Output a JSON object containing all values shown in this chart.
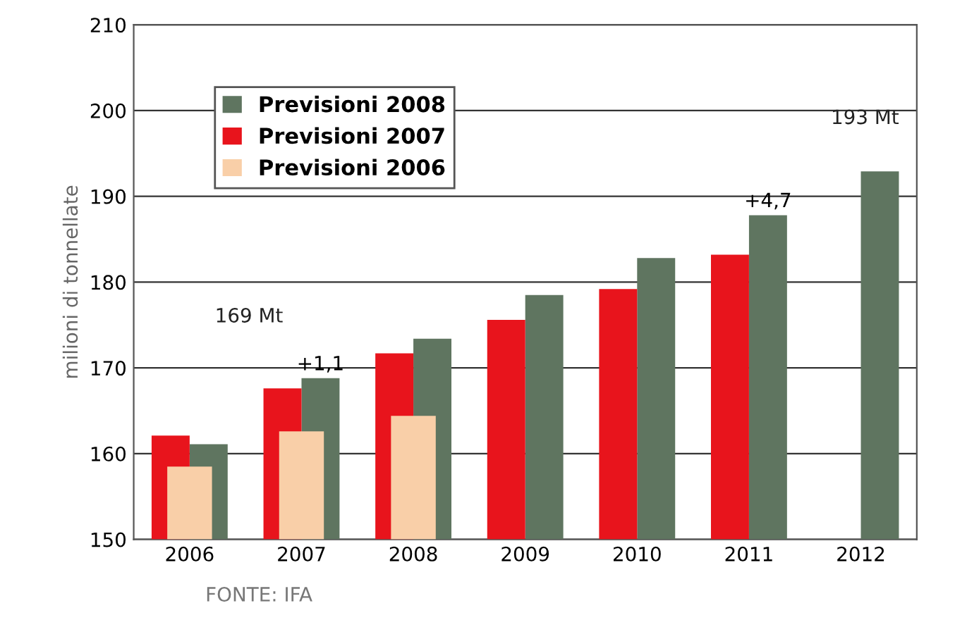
{
  "chart_data": {
    "type": "bar",
    "ylabel": "milioni di tonnellate",
    "categories": [
      "2006",
      "2007",
      "2008",
      "2009",
      "2010",
      "2011",
      "2012"
    ],
    "series": [
      {
        "name": "Previsioni 2008",
        "color": "#5f7560",
        "values": [
          161.1,
          168.8,
          173.4,
          178.5,
          182.8,
          187.8,
          192.9
        ]
      },
      {
        "name": "Previsioni 2007",
        "color": "#e8141c",
        "values": [
          162.1,
          167.6,
          171.7,
          175.6,
          179.2,
          183.2,
          null
        ]
      },
      {
        "name": "Previsioni 2006",
        "color": "#f9cfa8",
        "values": [
          158.5,
          162.6,
          164.4,
          null,
          null,
          null,
          null
        ]
      }
    ],
    "ylim": [
      150,
      210
    ],
    "yticks": [
      150,
      160,
      170,
      180,
      190,
      200,
      210
    ],
    "grid": "y",
    "legend": "top left",
    "annotations": [
      "169 Mt",
      {
        "text": "+1,1",
        "x": "2007",
        "y": 168.8
      },
      {
        "text": "+4,7",
        "x": "2011",
        "y": 187.8
      },
      "193 Mt",
      "FONTE: IFA"
    ]
  }
}
